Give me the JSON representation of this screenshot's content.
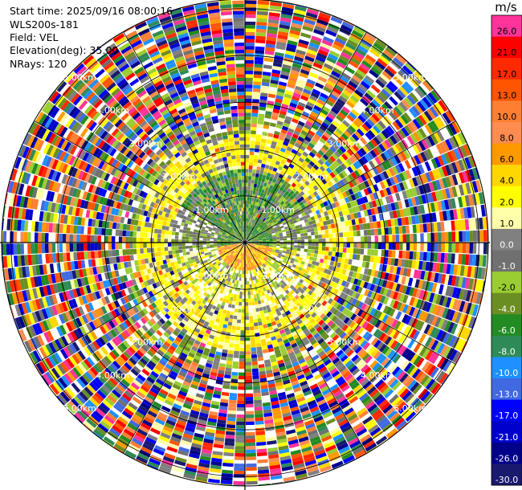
{
  "info": {
    "start_time": "Start time: 2025/09/16 08:00:16",
    "instrument": "WLS200s-181",
    "field": "Field: VEL",
    "elevation": "Elevation(deg): 35.00",
    "nrays": "NRays: 120"
  },
  "colorbar": {
    "unit": "m/s",
    "bins": [
      {
        "label": "26.0",
        "color": "#ff3399"
      },
      {
        "label": "21.0",
        "color": "#ff0000"
      },
      {
        "label": "17.0",
        "color": "#ff2a00"
      },
      {
        "label": "13.0",
        "color": "#ff5500"
      },
      {
        "label": "10.0",
        "color": "#ff7f32"
      },
      {
        "label": "8.0",
        "color": "#ff8c50"
      },
      {
        "label": "6.0",
        "color": "#ff9900"
      },
      {
        "label": "4.0",
        "color": "#ffd700"
      },
      {
        "label": "2.0",
        "color": "#ffff00"
      },
      {
        "label": "1.0",
        "color": "#ffffaa"
      },
      {
        "label": "0.0",
        "color": "#808080"
      },
      {
        "label": "-1.0",
        "color": "#707070"
      },
      {
        "label": "-2.0",
        "color": "#9acd32"
      },
      {
        "label": "-4.0",
        "color": "#6b8e23"
      },
      {
        "label": "-6.0",
        "color": "#228b22"
      },
      {
        "label": "-8.0",
        "color": "#2e8b57"
      },
      {
        "label": "-10.0",
        "color": "#1e90ff"
      },
      {
        "label": "-13.0",
        "color": "#4169e1"
      },
      {
        "label": "-17.0",
        "color": "#0000ff"
      },
      {
        "label": "-21.0",
        "color": "#0000cd"
      },
      {
        "label": "-26.0",
        "color": "#00008b"
      },
      {
        "label": "-30.0",
        "color": "#191970"
      }
    ]
  },
  "chart_data": {
    "type": "heatmap",
    "projection": "polar-ppi",
    "field": "VEL",
    "elevation_deg": 35.0,
    "nrays": 120,
    "range_rings_km": [
      1,
      2,
      3,
      4,
      5
    ],
    "ring_labels": [
      "1.00km",
      "2.00km",
      "3.00km",
      "4.00km",
      "5.00km"
    ],
    "max_range_km": 5.2,
    "spokes_deg": [
      0,
      30,
      60,
      90,
      120,
      150,
      180,
      210,
      240,
      270,
      300,
      330
    ],
    "velocity_structure": [
      {
        "range_km": [
          0.0,
          0.6
        ],
        "region": "inner",
        "dominant": "green / orange core"
      },
      {
        "range_km": [
          0.6,
          1.6
        ],
        "region": "near",
        "dominant": "green north, grey / yellow south"
      },
      {
        "range_km": [
          1.6,
          2.3
        ],
        "region": "ring",
        "dominant": "yellow"
      },
      {
        "range_km": [
          2.3,
          5.2
        ],
        "region": "outer",
        "dominant": "noisy / mixed"
      }
    ]
  }
}
